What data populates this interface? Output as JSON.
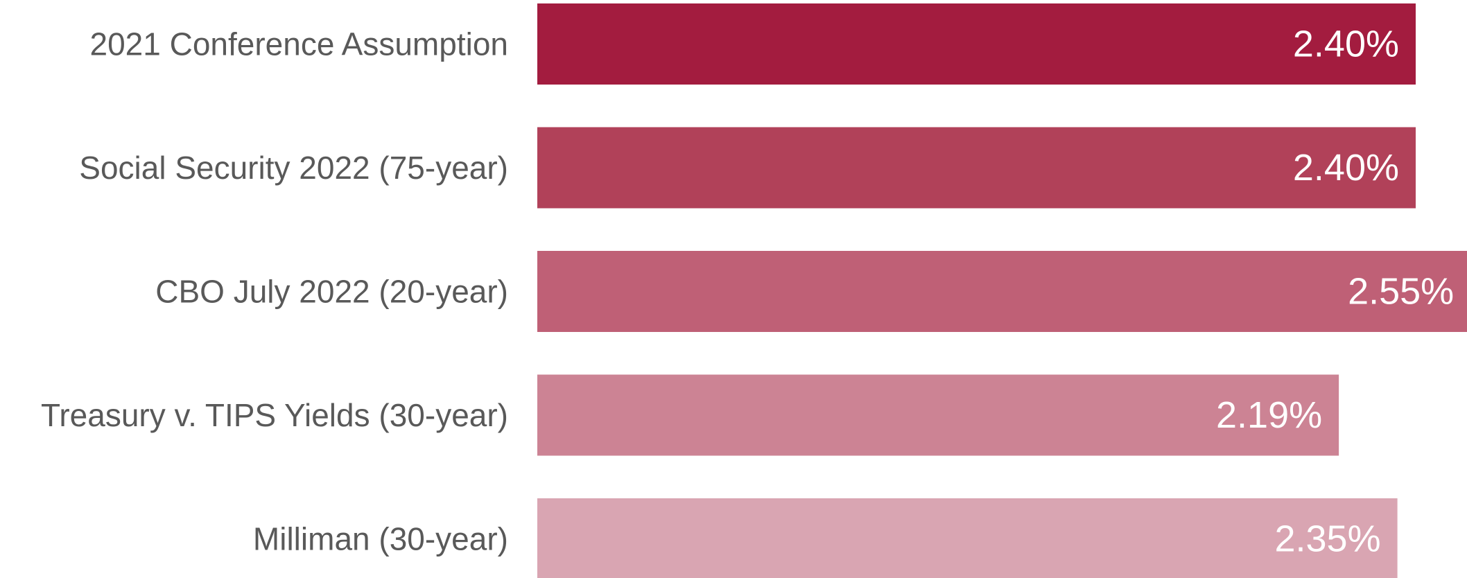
{
  "chart_data": {
    "type": "bar",
    "orientation": "horizontal",
    "categories": [
      "2021 Conference Assumption",
      "Social Security 2022 (75-year)",
      "CBO July 2022 (20-year)",
      "Treasury v. TIPS Yields (30-year)",
      "Milliman (30-year)"
    ],
    "values": [
      2.4,
      2.4,
      2.55,
      2.19,
      2.35
    ],
    "value_labels": [
      "2.40%",
      "2.40%",
      "2.55%",
      "2.19%",
      "2.35%"
    ],
    "bar_colors": [
      "#a31c3f",
      "#b14159",
      "#bf6076",
      "#cc8394",
      "#d9a5b2"
    ],
    "title": "",
    "xlabel": "",
    "ylabel": "",
    "grid": false,
    "legend": "none"
  }
}
